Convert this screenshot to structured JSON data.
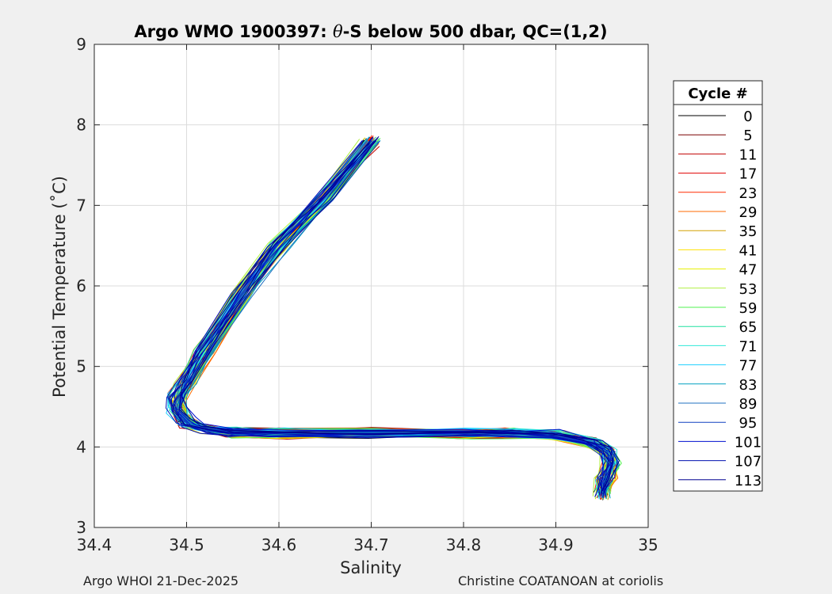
{
  "chart_data": {
    "type": "line",
    "title": {
      "prefix": "Argo WMO 1900397: ",
      "symbol": "θ",
      "suffix": "-S below 500 dbar,  QC=(1,2)"
    },
    "xlabel": "Salinity",
    "ylabel": "Potential Temperature (˚C)",
    "xlim": [
      34.4,
      35.0
    ],
    "ylim": [
      3,
      9
    ],
    "x_ticks": [
      "34.4",
      "34.5",
      "34.6",
      "34.7",
      "34.8",
      "34.9",
      "35"
    ],
    "y_ticks": [
      "3",
      "4",
      "5",
      "6",
      "7",
      "8",
      "9"
    ],
    "grid": true,
    "legend": {
      "title": "Cycle #",
      "placement": "right-outside",
      "entries": [
        "0",
        "5",
        "11",
        "17",
        "23",
        "29",
        "35",
        "41",
        "47",
        "53",
        "59",
        "65",
        "71",
        "77",
        "83",
        "89",
        "95",
        "101",
        "107",
        "113"
      ],
      "colors": [
        "#000000",
        "#7a0000",
        "#c00000",
        "#e00000",
        "#ff2a00",
        "#ff6a00",
        "#d4a000",
        "#ffe000",
        "#e6f000",
        "#b0f040",
        "#50f050",
        "#20e0a0",
        "#30e8d8",
        "#20d0ff",
        "#00a0c0",
        "#2070c0",
        "#1040c0",
        "#0010d0",
        "#0010b0",
        "#000090"
      ]
    },
    "series_shape": {
      "x": [
        34.95,
        34.955,
        34.96,
        34.955,
        34.94,
        34.9,
        34.85,
        34.8,
        34.7,
        34.6,
        34.55,
        34.52,
        34.5,
        34.49,
        34.49,
        34.5,
        34.52,
        34.56,
        34.6,
        34.65,
        34.7
      ],
      "y": [
        3.4,
        3.6,
        3.8,
        3.95,
        4.05,
        4.15,
        4.17,
        4.17,
        4.17,
        4.17,
        4.18,
        4.22,
        4.3,
        4.45,
        4.6,
        4.8,
        5.2,
        5.9,
        6.5,
        7.1,
        7.8
      ]
    }
  },
  "footer": {
    "left": "Argo WHOI 21-Dec-2025",
    "right": "Christine COATANOAN at coriolis"
  }
}
